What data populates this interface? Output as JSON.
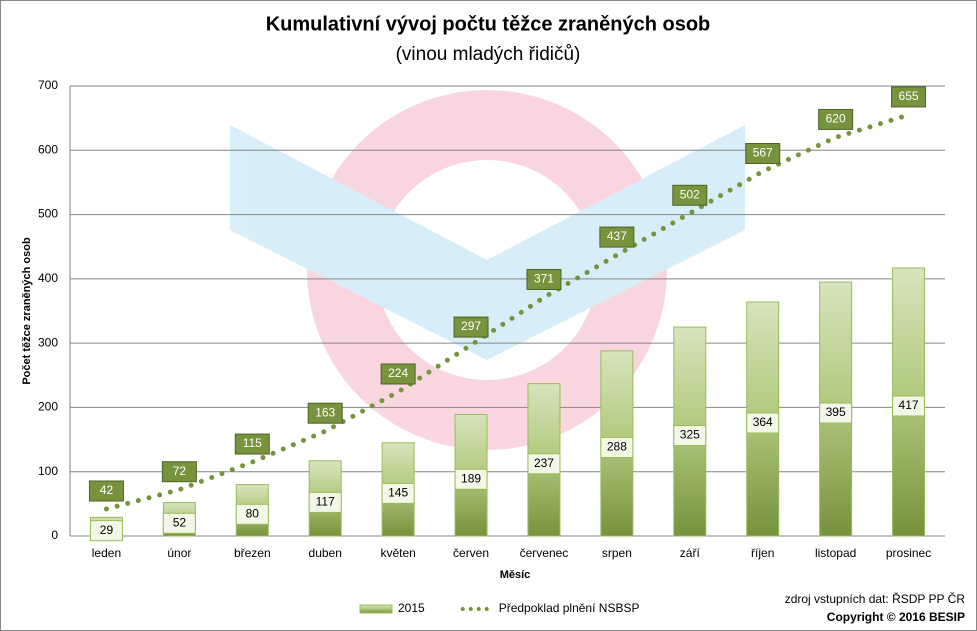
{
  "chart_data": {
    "type": "bar",
    "title": "Kumulativní vývoj počtu těžce zraněných osob",
    "subtitle": "(vinou mladých řidičů)",
    "x_label": "Měsíc",
    "y_label": "Počet těžce zraněných osob",
    "categories": [
      "leden",
      "únor",
      "březen",
      "duben",
      "květen",
      "červen",
      "červenec",
      "srpen",
      "září",
      "říjen",
      "listopad",
      "prosinec"
    ],
    "series": [
      {
        "name": "2015",
        "type": "bar",
        "color": "#9bbb59",
        "values": [
          29,
          52,
          80,
          117,
          145,
          189,
          237,
          288,
          325,
          364,
          395,
          417
        ]
      },
      {
        "name": "Předpoklad plnění NSBSP",
        "type": "line",
        "color": "#77933c",
        "values": [
          42,
          72,
          115,
          163,
          224,
          297,
          371,
          437,
          502,
          567,
          620,
          655
        ]
      }
    ],
    "ylim": [
      0,
      700
    ],
    "yticks": [
      0,
      100,
      200,
      300,
      400,
      500,
      600,
      700
    ],
    "grid": true,
    "source": "zdroj vstupních dat: ŘSDP PP ČR",
    "copyright": "Copyright © 2016 BESIP"
  }
}
